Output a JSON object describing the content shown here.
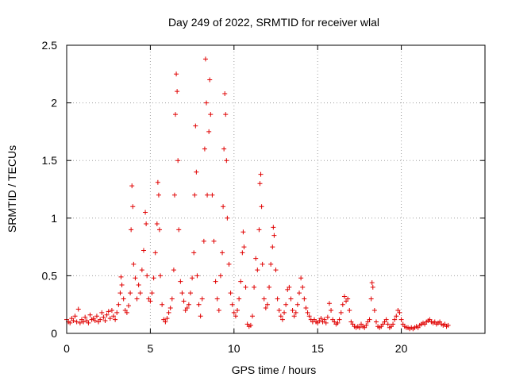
{
  "chart_data": {
    "type": "scatter",
    "title": "Day 249 of 2022, SRMTID for receiver wlal",
    "xlabel": "GPS time / hours",
    "ylabel": "SRMTID / TECUs",
    "xlim": [
      0,
      25
    ],
    "ylim": [
      0,
      2.5
    ],
    "grid": true,
    "marker": "+",
    "color": "#e00000",
    "x_ticks": [
      0,
      5,
      10,
      15,
      20
    ],
    "x_tick_labels": [
      "0",
      "5",
      "10",
      "15",
      "20"
    ],
    "y_ticks": [
      0,
      0.5,
      1,
      1.5,
      2,
      2.5
    ],
    "y_tick_labels": [
      "0",
      "0.5",
      "1",
      "1.5",
      "2",
      "2.5"
    ],
    "series": [
      {
        "name": "SRMTID",
        "points": [
          [
            0.0,
            0.12
          ],
          [
            0.1,
            0.1
          ],
          [
            0.2,
            0.09
          ],
          [
            0.3,
            0.13
          ],
          [
            0.4,
            0.11
          ],
          [
            0.5,
            0.15
          ],
          [
            0.6,
            0.1
          ],
          [
            0.7,
            0.21
          ],
          [
            0.8,
            0.09
          ],
          [
            0.9,
            0.12
          ],
          [
            1.0,
            0.1
          ],
          [
            1.1,
            0.14
          ],
          [
            1.2,
            0.11
          ],
          [
            1.3,
            0.09
          ],
          [
            1.4,
            0.16
          ],
          [
            1.5,
            0.12
          ],
          [
            1.6,
            0.13
          ],
          [
            1.7,
            0.11
          ],
          [
            1.8,
            0.15
          ],
          [
            1.9,
            0.1
          ],
          [
            2.0,
            0.12
          ],
          [
            2.1,
            0.18
          ],
          [
            2.2,
            0.14
          ],
          [
            2.3,
            0.11
          ],
          [
            2.4,
            0.16
          ],
          [
            2.5,
            0.19
          ],
          [
            2.6,
            0.13
          ],
          [
            2.7,
            0.2
          ],
          [
            2.8,
            0.15
          ],
          [
            2.9,
            0.12
          ],
          [
            3.0,
            0.18
          ],
          [
            3.1,
            0.25
          ],
          [
            3.2,
            0.35
          ],
          [
            3.25,
            0.49
          ],
          [
            3.3,
            0.42
          ],
          [
            3.4,
            0.3
          ],
          [
            3.5,
            0.2
          ],
          [
            3.6,
            0.18
          ],
          [
            3.7,
            0.24
          ],
          [
            3.8,
            0.35
          ],
          [
            3.85,
            0.9
          ],
          [
            3.9,
            1.28
          ],
          [
            3.95,
            1.1
          ],
          [
            4.0,
            0.6
          ],
          [
            4.1,
            0.48
          ],
          [
            4.2,
            0.3
          ],
          [
            4.3,
            0.42
          ],
          [
            4.4,
            0.35
          ],
          [
            4.5,
            0.55
          ],
          [
            4.6,
            0.72
          ],
          [
            4.7,
            1.05
          ],
          [
            4.75,
            0.95
          ],
          [
            4.8,
            0.5
          ],
          [
            4.9,
            0.3
          ],
          [
            5.0,
            0.28
          ],
          [
            5.1,
            0.35
          ],
          [
            5.2,
            0.48
          ],
          [
            5.3,
            0.7
          ],
          [
            5.4,
            0.95
          ],
          [
            5.45,
            1.31
          ],
          [
            5.5,
            1.2
          ],
          [
            5.55,
            0.9
          ],
          [
            5.6,
            0.5
          ],
          [
            5.7,
            0.25
          ],
          [
            5.8,
            0.12
          ],
          [
            5.9,
            0.1
          ],
          [
            6.0,
            0.13
          ],
          [
            6.1,
            0.18
          ],
          [
            6.2,
            0.22
          ],
          [
            6.3,
            0.3
          ],
          [
            6.4,
            0.55
          ],
          [
            6.45,
            1.2
          ],
          [
            6.5,
            1.9
          ],
          [
            6.55,
            2.25
          ],
          [
            6.6,
            2.1
          ],
          [
            6.65,
            1.5
          ],
          [
            6.7,
            0.9
          ],
          [
            6.8,
            0.45
          ],
          [
            6.9,
            0.35
          ],
          [
            7.0,
            0.28
          ],
          [
            7.1,
            0.2
          ],
          [
            7.2,
            0.22
          ],
          [
            7.3,
            0.25
          ],
          [
            7.4,
            0.35
          ],
          [
            7.5,
            0.48
          ],
          [
            7.6,
            0.7
          ],
          [
            7.65,
            1.2
          ],
          [
            7.7,
            1.8
          ],
          [
            7.75,
            1.4
          ],
          [
            7.8,
            0.5
          ],
          [
            7.9,
            0.25
          ],
          [
            8.0,
            0.15
          ],
          [
            8.1,
            0.3
          ],
          [
            8.2,
            0.8
          ],
          [
            8.25,
            1.6
          ],
          [
            8.3,
            2.38
          ],
          [
            8.35,
            2.0
          ],
          [
            8.4,
            1.2
          ],
          [
            8.5,
            1.75
          ],
          [
            8.55,
            2.2
          ],
          [
            8.6,
            1.9
          ],
          [
            8.7,
            1.2
          ],
          [
            8.8,
            0.8
          ],
          [
            8.9,
            0.45
          ],
          [
            9.0,
            0.3
          ],
          [
            9.1,
            0.2
          ],
          [
            9.2,
            0.5
          ],
          [
            9.3,
            0.7
          ],
          [
            9.35,
            1.1
          ],
          [
            9.4,
            1.6
          ],
          [
            9.45,
            2.08
          ],
          [
            9.5,
            1.9
          ],
          [
            9.55,
            1.5
          ],
          [
            9.6,
            1.0
          ],
          [
            9.7,
            0.6
          ],
          [
            9.8,
            0.35
          ],
          [
            9.9,
            0.25
          ],
          [
            10.0,
            0.18
          ],
          [
            10.1,
            0.15
          ],
          [
            10.2,
            0.2
          ],
          [
            10.3,
            0.3
          ],
          [
            10.4,
            0.45
          ],
          [
            10.5,
            0.7
          ],
          [
            10.55,
            0.88
          ],
          [
            10.6,
            0.75
          ],
          [
            10.7,
            0.4
          ],
          [
            10.8,
            0.08
          ],
          [
            10.9,
            0.06
          ],
          [
            11.0,
            0.07
          ],
          [
            11.1,
            0.15
          ],
          [
            11.2,
            0.4
          ],
          [
            11.3,
            0.65
          ],
          [
            11.4,
            0.55
          ],
          [
            11.5,
            0.9
          ],
          [
            11.55,
            1.3
          ],
          [
            11.6,
            1.38
          ],
          [
            11.65,
            1.1
          ],
          [
            11.7,
            0.6
          ],
          [
            11.8,
            0.3
          ],
          [
            11.9,
            0.22
          ],
          [
            12.0,
            0.25
          ],
          [
            12.1,
            0.4
          ],
          [
            12.2,
            0.6
          ],
          [
            12.3,
            0.75
          ],
          [
            12.35,
            0.92
          ],
          [
            12.4,
            0.85
          ],
          [
            12.5,
            0.55
          ],
          [
            12.6,
            0.3
          ],
          [
            12.7,
            0.2
          ],
          [
            12.8,
            0.15
          ],
          [
            12.9,
            0.12
          ],
          [
            13.0,
            0.18
          ],
          [
            13.1,
            0.25
          ],
          [
            13.2,
            0.38
          ],
          [
            13.3,
            0.4
          ],
          [
            13.4,
            0.3
          ],
          [
            13.5,
            0.2
          ],
          [
            13.6,
            0.15
          ],
          [
            13.7,
            0.18
          ],
          [
            13.8,
            0.25
          ],
          [
            13.9,
            0.35
          ],
          [
            14.0,
            0.48
          ],
          [
            14.1,
            0.4
          ],
          [
            14.2,
            0.3
          ],
          [
            14.3,
            0.22
          ],
          [
            14.4,
            0.18
          ],
          [
            14.5,
            0.15
          ],
          [
            14.6,
            0.12
          ],
          [
            14.7,
            0.1
          ],
          [
            14.8,
            0.12
          ],
          [
            14.9,
            0.1
          ],
          [
            15.0,
            0.09
          ],
          [
            15.1,
            0.11
          ],
          [
            15.2,
            0.13
          ],
          [
            15.3,
            0.1
          ],
          [
            15.4,
            0.12
          ],
          [
            15.5,
            0.09
          ],
          [
            15.6,
            0.14
          ],
          [
            15.7,
            0.26
          ],
          [
            15.8,
            0.2
          ],
          [
            15.9,
            0.12
          ],
          [
            16.0,
            0.1
          ],
          [
            16.1,
            0.08
          ],
          [
            16.2,
            0.09
          ],
          [
            16.3,
            0.12
          ],
          [
            16.4,
            0.18
          ],
          [
            16.5,
            0.25
          ],
          [
            16.6,
            0.32
          ],
          [
            16.7,
            0.28
          ],
          [
            16.8,
            0.3
          ],
          [
            16.9,
            0.2
          ],
          [
            17.0,
            0.1
          ],
          [
            17.1,
            0.08
          ],
          [
            17.2,
            0.06
          ],
          [
            17.3,
            0.05
          ],
          [
            17.4,
            0.06
          ],
          [
            17.5,
            0.05
          ],
          [
            17.6,
            0.08
          ],
          [
            17.7,
            0.06
          ],
          [
            17.8,
            0.05
          ],
          [
            17.9,
            0.07
          ],
          [
            18.0,
            0.1
          ],
          [
            18.1,
            0.12
          ],
          [
            18.2,
            0.3
          ],
          [
            18.25,
            0.44
          ],
          [
            18.3,
            0.4
          ],
          [
            18.4,
            0.2
          ],
          [
            18.5,
            0.1
          ],
          [
            18.6,
            0.06
          ],
          [
            18.7,
            0.05
          ],
          [
            18.8,
            0.06
          ],
          [
            18.9,
            0.08
          ],
          [
            19.0,
            0.1
          ],
          [
            19.1,
            0.12
          ],
          [
            19.2,
            0.08
          ],
          [
            19.3,
            0.05
          ],
          [
            19.4,
            0.06
          ],
          [
            19.5,
            0.08
          ],
          [
            19.6,
            0.12
          ],
          [
            19.7,
            0.15
          ],
          [
            19.8,
            0.2
          ],
          [
            19.9,
            0.18
          ],
          [
            20.0,
            0.12
          ],
          [
            20.1,
            0.08
          ],
          [
            20.2,
            0.06
          ],
          [
            20.3,
            0.05
          ],
          [
            20.4,
            0.05
          ],
          [
            20.5,
            0.04
          ],
          [
            20.6,
            0.05
          ],
          [
            20.7,
            0.04
          ],
          [
            20.8,
            0.05
          ],
          [
            20.9,
            0.06
          ],
          [
            21.0,
            0.05
          ],
          [
            21.1,
            0.07
          ],
          [
            21.2,
            0.08
          ],
          [
            21.3,
            0.09
          ],
          [
            21.4,
            0.08
          ],
          [
            21.5,
            0.1
          ],
          [
            21.6,
            0.11
          ],
          [
            21.7,
            0.12
          ],
          [
            21.8,
            0.1
          ],
          [
            21.9,
            0.09
          ],
          [
            22.0,
            0.1
          ],
          [
            22.1,
            0.08
          ],
          [
            22.2,
            0.09
          ],
          [
            22.3,
            0.1
          ],
          [
            22.4,
            0.08
          ],
          [
            22.5,
            0.07
          ],
          [
            22.6,
            0.08
          ],
          [
            22.7,
            0.06
          ],
          [
            22.8,
            0.07
          ]
        ]
      }
    ]
  }
}
